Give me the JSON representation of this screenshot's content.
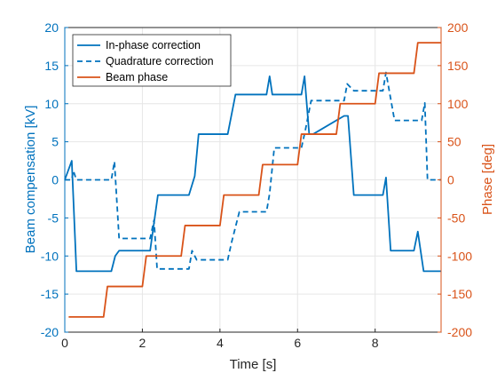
{
  "colors": {
    "left_axis": "#0072BD",
    "right_axis": "#D95319",
    "grid": "#e6e6e6",
    "frame": "#262626"
  },
  "chart_data": {
    "type": "line",
    "xlabel": "Time [s]",
    "ylabel_left": "Beam compensation [kV]",
    "ylabel_right": "Phase [deg]",
    "xlim": [
      0,
      9.7
    ],
    "ylim_left": [
      -20,
      20
    ],
    "ylim_right": [
      -200,
      200
    ],
    "grid": true,
    "legend_position": "top-left",
    "x_ticks": [
      "0",
      "2",
      "4",
      "6",
      "8"
    ],
    "y_ticks_left": [
      "-20",
      "-15",
      "-10",
      "-5",
      "0",
      "5",
      "10",
      "15",
      "20"
    ],
    "y_ticks_right": [
      "-200",
      "-150",
      "-100",
      "-50",
      "0",
      "50",
      "100",
      "150",
      "200"
    ],
    "series": [
      {
        "name": "In-phase correction",
        "axis": "left",
        "style": "solid",
        "color": "#0072BD",
        "x": [
          0,
          0.18,
          0.3,
          1.2,
          1.3,
          1.4,
          2.2,
          2.4,
          3.2,
          3.35,
          3.45,
          4.2,
          4.4,
          5.2,
          5.28,
          5.35,
          6.1,
          6.18,
          6.3,
          6.4,
          7.2,
          7.3,
          7.45,
          8.2,
          8.28,
          8.4,
          9.0,
          9.1,
          9.25,
          9.7
        ],
        "y": [
          0,
          2.5,
          -12,
          -12,
          -10,
          -9.3,
          -9.3,
          -2,
          -2,
          0.5,
          6,
          6,
          11.2,
          11.2,
          13.6,
          11.2,
          11.2,
          13.6,
          6,
          6,
          8.4,
          8.4,
          -2,
          -2,
          0.3,
          -9.3,
          -9.3,
          -6.8,
          -12,
          -12
        ]
      },
      {
        "name": "Quadrature correction",
        "axis": "left",
        "style": "dashed",
        "color": "#0072BD",
        "x": [
          0,
          0.18,
          0.22,
          0.3,
          1.2,
          1.28,
          1.4,
          2.2,
          2.3,
          2.38,
          3.2,
          3.28,
          3.4,
          4.2,
          4.3,
          4.5,
          5.2,
          5.28,
          5.4,
          6.1,
          6.2,
          6.35,
          7.2,
          7.28,
          7.45,
          8.2,
          8.28,
          8.5,
          9.2,
          9.28,
          9.35,
          9.7
        ],
        "y": [
          0,
          0,
          1.2,
          0,
          0,
          2.4,
          -7.7,
          -7.7,
          -5.3,
          -11.7,
          -11.7,
          -9.3,
          -10.5,
          -10.5,
          -8.2,
          -4.2,
          -4.2,
          -1.8,
          4.2,
          4.2,
          6.5,
          10.4,
          10.4,
          12.6,
          11.7,
          11.7,
          14.1,
          7.8,
          7.8,
          10.1,
          0,
          0
        ]
      },
      {
        "name": "Beam phase",
        "axis": "right",
        "style": "solid",
        "color": "#D95319",
        "x": [
          0.1,
          1.0,
          1.1,
          2.0,
          2.1,
          3.0,
          3.1,
          4.0,
          4.1,
          5.0,
          5.1,
          6.0,
          6.1,
          7.0,
          7.1,
          8.0,
          8.1,
          9.0,
          9.1,
          9.7
        ],
        "y": [
          -180,
          -180,
          -140,
          -140,
          -100,
          -100,
          -60,
          -60,
          -20,
          -20,
          20,
          20,
          60,
          60,
          100,
          100,
          140,
          140,
          180,
          180
        ]
      }
    ]
  }
}
